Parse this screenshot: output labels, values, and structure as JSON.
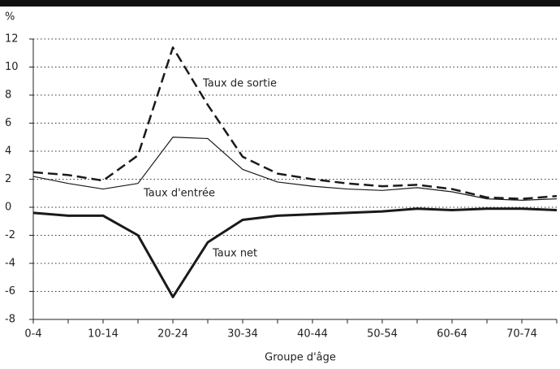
{
  "chart_data": {
    "type": "line",
    "y_unit_label": "%",
    "x_label": "Groupe d'âge",
    "categories": [
      "0-4",
      null,
      "10-14",
      null,
      "20-24",
      null,
      "30-34",
      null,
      "40-44",
      null,
      "50-54",
      null,
      "60-64",
      null,
      "70-74",
      null
    ],
    "series": [
      {
        "name": "Taux de sortie",
        "color": "#1a1a1a",
        "dash": "dashed",
        "width": 2.5,
        "values": [
          2.5,
          2.3,
          1.9,
          3.7,
          11.4,
          7.3,
          3.6,
          2.4,
          2.0,
          1.7,
          1.5,
          1.6,
          1.3,
          0.7,
          0.6,
          0.8
        ]
      },
      {
        "name": "Taux d'entrée",
        "color": "#1a1a1a",
        "dash": "solid",
        "width": 1.2,
        "values": [
          2.2,
          1.7,
          1.3,
          1.7,
          5.0,
          4.9,
          2.7,
          1.8,
          1.5,
          1.3,
          1.2,
          1.4,
          1.1,
          0.6,
          0.5,
          0.6
        ]
      },
      {
        "name": "Taux net",
        "color": "#1a1a1a",
        "dash": "solid",
        "width": 3,
        "values": [
          -0.4,
          -0.6,
          -0.6,
          -2.0,
          -6.4,
          -2.5,
          -0.9,
          -0.6,
          -0.5,
          -0.4,
          -0.3,
          -0.1,
          -0.2,
          -0.1,
          -0.1,
          -0.2
        ]
      }
    ],
    "ylim": [
      -8,
      12
    ],
    "yticks": [
      -8,
      -6,
      -4,
      -2,
      0,
      2,
      4,
      6,
      8,
      10,
      12
    ],
    "grid": true
  }
}
